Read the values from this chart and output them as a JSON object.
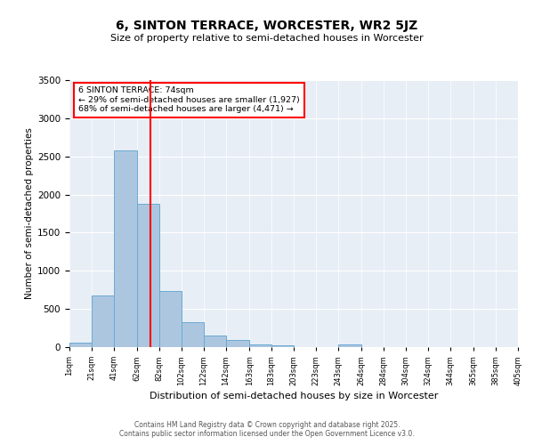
{
  "title": "6, SINTON TERRACE, WORCESTER, WR2 5JZ",
  "subtitle": "Size of property relative to semi-detached houses in Worcester",
  "xlabel": "Distribution of semi-detached houses by size in Worcester",
  "ylabel": "Number of semi-detached properties",
  "annotation_line1": "6 SINTON TERRACE: 74sqm",
  "annotation_line2": "← 29% of semi-detached houses are smaller (1,927)",
  "annotation_line3": "68% of semi-detached houses are larger (4,471) →",
  "bins": [
    1,
    21,
    41,
    62,
    82,
    102,
    122,
    142,
    163,
    183,
    203,
    223,
    243,
    264,
    284,
    304,
    324,
    344,
    365,
    385,
    405
  ],
  "counts": [
    60,
    680,
    2580,
    1880,
    730,
    330,
    155,
    90,
    35,
    25,
    0,
    0,
    40,
    0,
    0,
    0,
    0,
    0,
    0,
    0
  ],
  "bar_color": "#adc6e0",
  "bar_edge_color": "#6aaad4",
  "red_line_x": 74,
  "ylim": [
    0,
    3500
  ],
  "yticks": [
    0,
    500,
    1000,
    1500,
    2000,
    2500,
    3000,
    3500
  ],
  "background_color": "#e8eef5",
  "footer_line1": "Contains HM Land Registry data © Crown copyright and database right 2025.",
  "footer_line2": "Contains public sector information licensed under the Open Government Licence v3.0."
}
